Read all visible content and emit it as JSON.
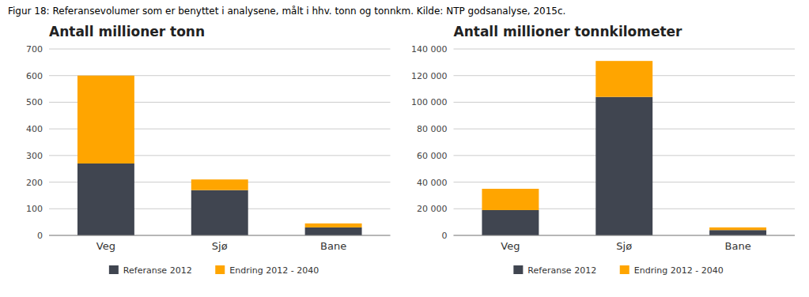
{
  "title": "Figur 18: Referansevolumer som er benyttet i analysene, målt i hhv. tonn og tonnkm. Kilde: NTP godsanalyse, 2015c.",
  "chart_data": [
    {
      "type": "bar",
      "title": "Antall millioner tonn",
      "categories": [
        "Veg",
        "Sjø",
        "Bane"
      ],
      "series": [
        {
          "name": "Referanse 2012",
          "color": "#404550",
          "values": [
            270,
            170,
            30
          ]
        },
        {
          "name": "Endring 2012 - 2040",
          "color": "#FFA500",
          "values": [
            330,
            40,
            15
          ]
        }
      ],
      "stacked": true,
      "ylim": [
        0,
        700
      ],
      "yticks": [
        0,
        100,
        200,
        300,
        400,
        500,
        600,
        700
      ],
      "grid": true,
      "legend": "bottom"
    },
    {
      "type": "bar",
      "title": "Antall millioner tonnkilometer",
      "categories": [
        "Veg",
        "Sjø",
        "Bane"
      ],
      "series": [
        {
          "name": "Referanse 2012",
          "color": "#404550",
          "values": [
            19000,
            104000,
            4000
          ]
        },
        {
          "name": "Endring 2012 - 2040",
          "color": "#FFA500",
          "values": [
            16000,
            27000,
            2000
          ]
        }
      ],
      "stacked": true,
      "ylim": [
        0,
        140000
      ],
      "yticks": [
        0,
        {
          "value": 20000,
          "label": "20 000"
        },
        {
          "value": 40000,
          "label": "40 000"
        },
        {
          "value": 60000,
          "label": "60 000"
        },
        {
          "value": 80000,
          "label": "80 000"
        },
        {
          "value": 100000,
          "label": "100 000"
        },
        {
          "value": 120000,
          "label": "120 000"
        },
        {
          "value": 140000,
          "label": "140 000"
        }
      ],
      "grid": true,
      "legend": "bottom"
    }
  ]
}
